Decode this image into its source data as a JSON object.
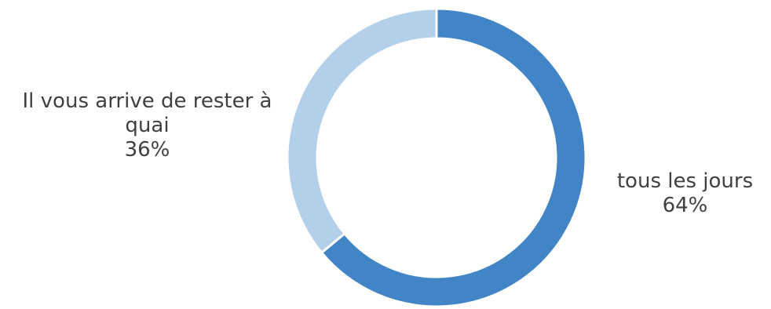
{
  "chart_data": {
    "type": "pie",
    "donut": true,
    "title": "",
    "slices": [
      {
        "label": "tous les jours",
        "value": 64,
        "value_label": "64%",
        "color": "#4185C7"
      },
      {
        "label": "Il vous arrive de rester à quai",
        "value": 36,
        "value_label": "36%",
        "color": "#B3CFEA"
      }
    ],
    "start": "top",
    "direction": "clockwise",
    "legend": "none"
  }
}
